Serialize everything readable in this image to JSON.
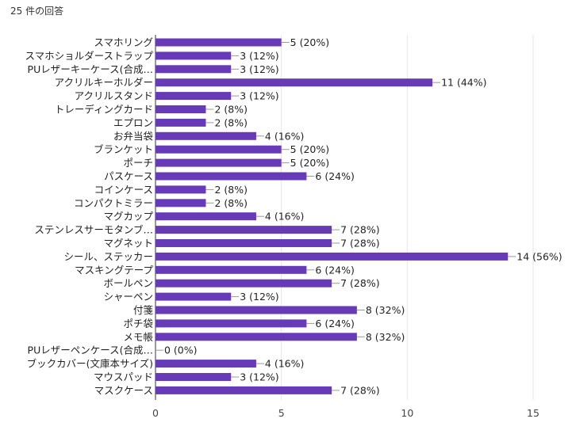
{
  "header": {
    "response_count": "25 件の回答"
  },
  "chart_data": {
    "type": "bar",
    "orientation": "horizontal",
    "categories": [
      "スマホリング",
      "スマホショルダーストラップ",
      "PUレザーキーケース(合成…",
      "アクリルキーホルダー",
      "アクリルスタンド",
      "トレーディングカード",
      "エプロン",
      "お弁当袋",
      "ブランケット",
      "ポーチ",
      "パスケース",
      "コインケース",
      "コンパクトミラー",
      "マグカップ",
      "ステンレスサーモタンブ…",
      "マグネット",
      "シール、ステッカー",
      "マスキングテープ",
      "ボールペン",
      "シャーペン",
      "付箋",
      "ポチ袋",
      "メモ帳",
      "PUレザーペンケース(合成…",
      "ブックカバー(文庫本サイズ)",
      "マウスパッド",
      "マスクケース"
    ],
    "values": [
      5,
      3,
      3,
      11,
      3,
      2,
      2,
      4,
      5,
      5,
      6,
      2,
      2,
      4,
      7,
      7,
      14,
      6,
      7,
      3,
      8,
      6,
      8,
      0,
      4,
      3,
      7
    ],
    "value_labels": [
      "5 (20%)",
      "3 (12%)",
      "3 (12%)",
      "11 (44%)",
      "3 (12%)",
      "2 (8%)",
      "2 (8%)",
      "4 (16%)",
      "5 (20%)",
      "5 (20%)",
      "6 (24%)",
      "2 (8%)",
      "2 (8%)",
      "4 (16%)",
      "7 (28%)",
      "7 (28%)",
      "14 (56%)",
      "6 (24%)",
      "7 (28%)",
      "3 (12%)",
      "8 (32%)",
      "6 (24%)",
      "8 (32%)",
      "0 (0%)",
      "4 (16%)",
      "3 (12%)",
      "7 (28%)"
    ],
    "xticks": [
      "0",
      "5",
      "10",
      "15"
    ],
    "xlim": [
      0,
      15
    ],
    "grid": true,
    "bar_color": "#673ab7"
  }
}
